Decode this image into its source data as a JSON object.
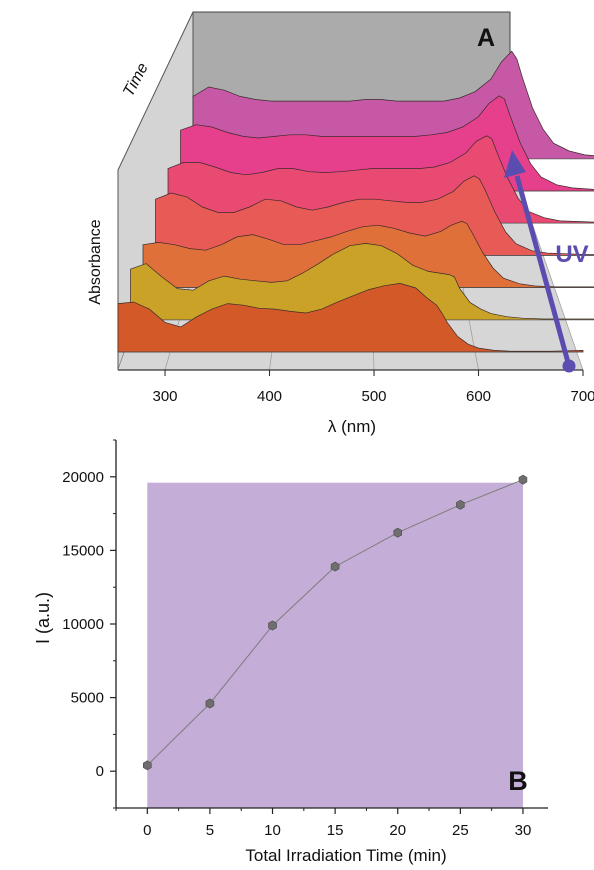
{
  "chart_data": [
    {
      "panel_label": "A",
      "type": "area",
      "xlabel": "λ (nm)",
      "ylabel": "Absorbance",
      "zlabel": "Time",
      "xlim": [
        255,
        700
      ],
      "xticks": [
        300,
        400,
        500,
        600,
        700
      ],
      "arrow_label": "UV",
      "colors": [
        "#D35A28",
        "#C9A227",
        "#E0703A",
        "#E85A55",
        "#E84A72",
        "#E6408C",
        "#C658A6"
      ],
      "x": [
        255,
        270,
        285,
        300,
        315,
        330,
        345,
        360,
        375,
        390,
        405,
        420,
        435,
        450,
        465,
        480,
        495,
        510,
        525,
        540,
        550,
        560,
        565,
        570,
        580,
        590,
        600,
        615,
        630,
        650,
        670,
        700
      ],
      "series": [
        {
          "values": [
            0.62,
            0.64,
            0.55,
            0.38,
            0.32,
            0.45,
            0.55,
            0.62,
            0.6,
            0.56,
            0.55,
            0.52,
            0.5,
            0.55,
            0.64,
            0.72,
            0.8,
            0.85,
            0.88,
            0.82,
            0.7,
            0.6,
            0.5,
            0.38,
            0.2,
            0.1,
            0.05,
            0.02,
            0.01,
            0.01,
            0.01,
            0.02
          ]
        },
        {
          "values": [
            0.65,
            0.72,
            0.55,
            0.4,
            0.38,
            0.5,
            0.56,
            0.52,
            0.5,
            0.48,
            0.5,
            0.6,
            0.72,
            0.85,
            0.95,
            0.98,
            0.95,
            0.85,
            0.7,
            0.62,
            0.6,
            0.58,
            0.55,
            0.4,
            0.22,
            0.14,
            0.08,
            0.04,
            0.02,
            0.01,
            0.01,
            0.01
          ]
        },
        {
          "values": [
            0.55,
            0.58,
            0.55,
            0.5,
            0.48,
            0.55,
            0.65,
            0.68,
            0.62,
            0.55,
            0.55,
            0.6,
            0.65,
            0.72,
            0.78,
            0.8,
            0.76,
            0.7,
            0.66,
            0.72,
            0.8,
            0.85,
            0.82,
            0.7,
            0.45,
            0.25,
            0.12,
            0.05,
            0.02,
            0.01,
            0.01,
            0.01
          ]
        },
        {
          "values": [
            0.72,
            0.8,
            0.75,
            0.62,
            0.55,
            0.55,
            0.62,
            0.72,
            0.7,
            0.62,
            0.58,
            0.62,
            0.68,
            0.72,
            0.72,
            0.7,
            0.68,
            0.68,
            0.72,
            0.82,
            0.95,
            1.02,
            0.98,
            0.85,
            0.55,
            0.3,
            0.15,
            0.06,
            0.03,
            0.02,
            0.01,
            0.01
          ]
        },
        {
          "values": [
            0.7,
            0.78,
            0.78,
            0.72,
            0.65,
            0.62,
            0.65,
            0.7,
            0.7,
            0.66,
            0.65,
            0.66,
            0.68,
            0.7,
            0.7,
            0.7,
            0.7,
            0.72,
            0.78,
            0.9,
            1.05,
            1.12,
            1.08,
            0.9,
            0.58,
            0.32,
            0.15,
            0.07,
            0.03,
            0.02,
            0.01,
            0.01
          ]
        },
        {
          "values": [
            0.78,
            0.85,
            0.82,
            0.75,
            0.7,
            0.68,
            0.7,
            0.72,
            0.72,
            0.7,
            0.7,
            0.7,
            0.7,
            0.7,
            0.7,
            0.7,
            0.72,
            0.75,
            0.82,
            0.95,
            1.12,
            1.22,
            1.18,
            0.98,
            0.62,
            0.35,
            0.18,
            0.08,
            0.04,
            0.02,
            0.01,
            0.01
          ]
        },
        {
          "values": [
            0.8,
            0.92,
            0.88,
            0.8,
            0.76,
            0.74,
            0.74,
            0.74,
            0.74,
            0.74,
            0.74,
            0.76,
            0.76,
            0.74,
            0.74,
            0.74,
            0.74,
            0.78,
            0.86,
            1.02,
            1.24,
            1.38,
            1.28,
            1.05,
            0.65,
            0.38,
            0.2,
            0.1,
            0.05,
            0.03,
            0.02,
            0.02
          ]
        }
      ]
    },
    {
      "panel_label": "B",
      "type": "line",
      "xlabel": "Total Irradiation Time (min)",
      "ylabel": "I (a.u.)",
      "xlim": [
        -2.5,
        32
      ],
      "ylim": [
        -2500,
        22500
      ],
      "xticks": [
        0,
        5,
        10,
        15,
        20,
        25,
        30
      ],
      "yticks": [
        0,
        5000,
        10000,
        15000,
        20000
      ],
      "shade": {
        "x": [
          0,
          30
        ],
        "y": [
          -2500,
          19600
        ],
        "color": "#C4ADD6"
      },
      "marker_color": "#6E6E6E",
      "line_color": "#7D7D7D",
      "x": [
        0,
        5,
        10,
        15,
        20,
        25,
        30
      ],
      "y": [
        400,
        4600,
        9900,
        13900,
        16200,
        18100,
        19800
      ]
    }
  ]
}
